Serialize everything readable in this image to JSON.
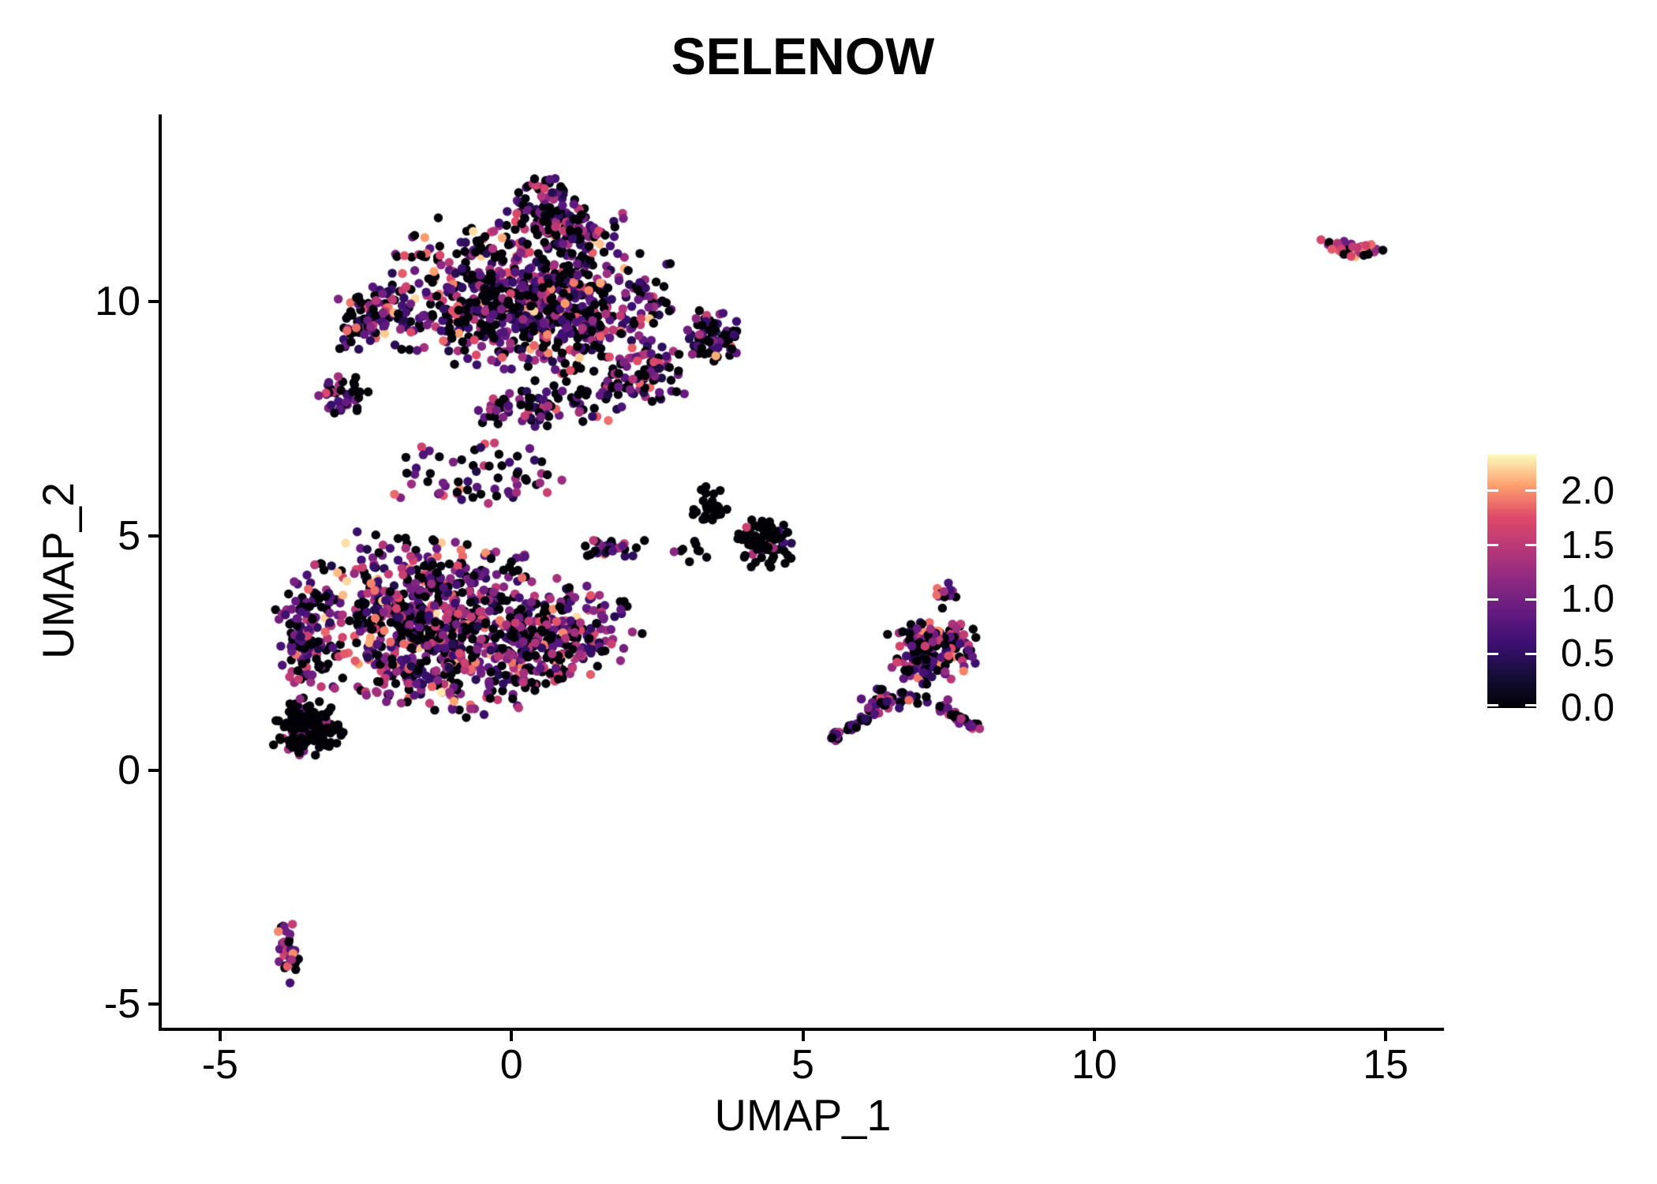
{
  "chart_data": {
    "type": "scatter",
    "title": "SELENOW",
    "xlabel": "UMAP_1",
    "ylabel": "UMAP_2",
    "xlim": [
      -6,
      16
    ],
    "ylim": [
      -5.5,
      14
    ],
    "xticks": [
      -5,
      0,
      5,
      10,
      15
    ],
    "yticks": [
      -5,
      0,
      5,
      10
    ],
    "grid": false,
    "background": "#ffffff",
    "axis_color": "#000000",
    "legend_position": "right",
    "colorbar": {
      "colormap": "magma",
      "domain": [
        0,
        2.34
      ],
      "tick_labels": [
        "2.0",
        "1.5",
        "1.0",
        "0.5",
        "0.0"
      ],
      "tick_values": [
        2.0,
        1.5,
        1.0,
        0.5,
        0.0
      ],
      "stops": [
        "#000004",
        "#140e36",
        "#3b0f70",
        "#641a80",
        "#8c2981",
        "#b73779",
        "#de4968",
        "#fe9f6d",
        "#fcfdbf"
      ]
    },
    "points": {
      "seed": 42,
      "radius_px": 5.7,
      "mixes": {
        "main": [
          [
            0.4,
            0,
            0.05
          ],
          [
            0.3,
            0.35,
            0.95
          ],
          [
            0.2,
            0.95,
            1.55
          ],
          [
            0.08,
            1.55,
            1.95
          ],
          [
            0.02,
            1.95,
            2.25
          ]
        ],
        "bright": [
          [
            0.36,
            0,
            0.05
          ],
          [
            0.26,
            0.35,
            0.95
          ],
          [
            0.25,
            0.95,
            1.6
          ],
          [
            0.1,
            1.6,
            2.0
          ],
          [
            0.03,
            2.0,
            2.3
          ]
        ],
        "dark": [
          [
            0.87,
            0,
            0.04
          ],
          [
            0.07,
            0.4,
            0.95
          ],
          [
            0.06,
            0.95,
            1.7
          ]
        ],
        "mid": [
          [
            0.4,
            0,
            0.05
          ],
          [
            0.3,
            0.4,
            1.0
          ],
          [
            0.24,
            1.0,
            1.6
          ],
          [
            0.06,
            1.6,
            2.0
          ]
        ],
        "hot": [
          [
            0.25,
            0,
            0.07
          ],
          [
            0.15,
            0.9,
            1.3
          ],
          [
            0.28,
            1.3,
            1.75
          ],
          [
            0.2,
            1.75,
            2.1
          ],
          [
            0.12,
            2.1,
            2.34
          ]
        ]
      },
      "groups": [
        {
          "name": "upper-blob-core",
          "shape": "ellipse",
          "c": [
            0.3,
            10.0
          ],
          "r": [
            2.45,
            1.55
          ],
          "rot": -10,
          "n": 780,
          "mix": "main"
        },
        {
          "name": "upper-blob-top-lobe",
          "shape": "ellipse",
          "c": [
            0.85,
            11.65
          ],
          "r": [
            1.05,
            0.6
          ],
          "rot": -18,
          "n": 130,
          "mix": "main"
        },
        {
          "name": "upper-blob-tip",
          "shape": "ellipse",
          "c": [
            0.55,
            12.4
          ],
          "r": [
            0.35,
            0.28
          ],
          "rot": 0,
          "n": 22,
          "mix": "main"
        },
        {
          "name": "upper-blob-left-lobe",
          "shape": "ellipse",
          "c": [
            -2.35,
            9.7
          ],
          "r": [
            0.7,
            0.75
          ],
          "rot": 0,
          "n": 100,
          "mix": "main"
        },
        {
          "name": "upper-blob-left-arm",
          "shape": "ellipse",
          "c": [
            -2.9,
            8.05
          ],
          "r": [
            0.45,
            0.5
          ],
          "rot": 0,
          "n": 40,
          "mix": "main"
        },
        {
          "name": "upper-blob-bottom-band",
          "shape": "ellipse",
          "c": [
            0.8,
            7.85
          ],
          "r": [
            1.5,
            0.55
          ],
          "rot": 5,
          "n": 90,
          "mix": "main"
        },
        {
          "name": "upper-blob-right-bulge",
          "shape": "ellipse",
          "c": [
            3.45,
            9.2
          ],
          "r": [
            0.5,
            0.62
          ],
          "rot": 0,
          "n": 75,
          "mix": "main"
        },
        {
          "name": "upper-blob-right-mid",
          "shape": "ellipse",
          "c": [
            2.35,
            8.45
          ],
          "r": [
            0.75,
            0.6
          ],
          "rot": 0,
          "n": 70,
          "mix": "main"
        },
        {
          "name": "mid-blob-core",
          "shape": "ellipse",
          "c": [
            -1.4,
            3.1
          ],
          "r": [
            2.2,
            1.85
          ],
          "rot": -12,
          "n": 820,
          "mix": "bright"
        },
        {
          "name": "mid-blob-right-wedge",
          "shape": "ellipse",
          "c": [
            0.85,
            2.8
          ],
          "r": [
            1.35,
            0.95
          ],
          "rot": 28,
          "n": 230,
          "mix": "bright"
        },
        {
          "name": "mid-blob-black-corner",
          "shape": "ellipse",
          "c": [
            -3.5,
            0.9
          ],
          "r": [
            0.62,
            0.66
          ],
          "rot": 0,
          "n": 150,
          "mix": "dark"
        },
        {
          "name": "mid-blob-left-column",
          "shape": "ellipse",
          "c": [
            -3.55,
            2.9
          ],
          "r": [
            0.5,
            1.5
          ],
          "rot": 0,
          "n": 110,
          "mix": "main"
        },
        {
          "name": "mid-blob-top-arm",
          "shape": "ellipse",
          "c": [
            1.7,
            4.75
          ],
          "r": [
            0.6,
            0.22
          ],
          "rot": 0,
          "n": 30,
          "mix": "bright"
        },
        {
          "name": "bridge-scatter",
          "shape": "ellipse",
          "c": [
            -0.55,
            6.3
          ],
          "r": [
            1.6,
            0.75
          ],
          "rot": 0,
          "n": 65,
          "mix": "main"
        },
        {
          "name": "small-black-cluster",
          "shape": "ellipse",
          "c": [
            4.35,
            4.85
          ],
          "r": [
            0.48,
            0.55
          ],
          "rot": 0,
          "n": 68,
          "mix": "dark"
        },
        {
          "name": "small-black-left-lobe",
          "shape": "ellipse",
          "c": [
            3.4,
            5.6
          ],
          "r": [
            0.32,
            0.48
          ],
          "rot": 0,
          "n": 26,
          "mix": "dark"
        },
        {
          "name": "small-black-strays",
          "shape": "ellipse",
          "c": [
            3.1,
            4.7
          ],
          "r": [
            0.35,
            0.3
          ],
          "rot": 0,
          "n": 9,
          "mix": "dark"
        },
        {
          "name": "right-cluster-main",
          "shape": "ellipse",
          "c": [
            7.25,
            2.55
          ],
          "r": [
            0.82,
            0.72
          ],
          "rot": 20,
          "n": 150,
          "mix": "mid"
        },
        {
          "name": "right-cluster-spur",
          "shape": "ellipse",
          "c": [
            7.45,
            3.7
          ],
          "r": [
            0.27,
            0.3
          ],
          "rot": 0,
          "n": 12,
          "mix": "mid"
        },
        {
          "name": "right-cluster-row",
          "shape": "ellipse",
          "c": [
            6.7,
            1.55
          ],
          "r": [
            0.85,
            0.28
          ],
          "rot": 0,
          "n": 28,
          "mix": "mid"
        },
        {
          "name": "right-cluster-arm",
          "shape": "line",
          "p1": [
            6.5,
            1.5
          ],
          "p2": [
            5.42,
            0.62
          ],
          "w": 0.13,
          "n": 42,
          "mix": "mid"
        },
        {
          "name": "right-cluster-hook",
          "shape": "line",
          "p1": [
            7.32,
            1.35
          ],
          "p2": [
            8.0,
            0.92
          ],
          "w": 0.13,
          "n": 30,
          "mix": "mid"
        },
        {
          "name": "bottom-left-cluster",
          "shape": "ellipse",
          "c": [
            -3.82,
            -3.9
          ],
          "r": [
            0.2,
            0.65
          ],
          "rot": 10,
          "n": 30,
          "mix": "mid"
        },
        {
          "name": "far-right-cluster",
          "shape": "ellipse",
          "c": [
            14.45,
            11.13
          ],
          "r": [
            0.58,
            0.22
          ],
          "rot": -4,
          "n": 40,
          "mix": "hot"
        }
      ]
    }
  }
}
